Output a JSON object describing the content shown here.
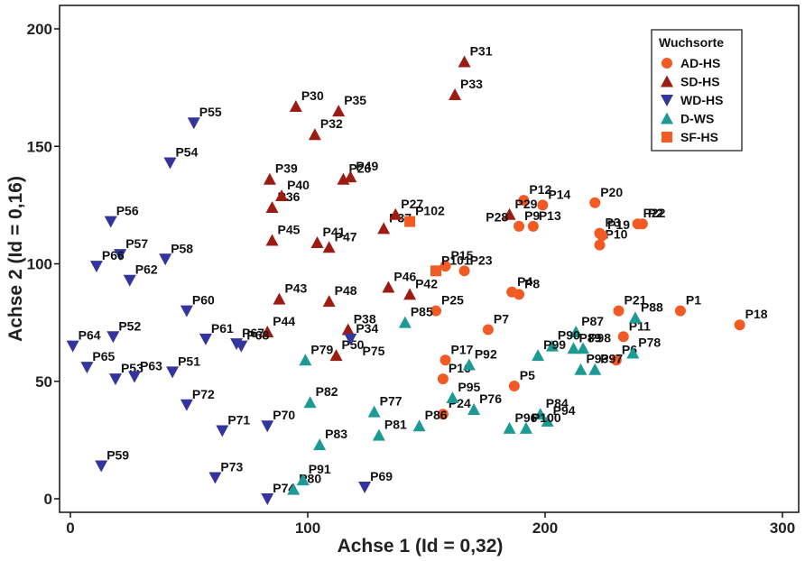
{
  "chart_data": {
    "type": "scatter",
    "xlabel": "Achse 1 (Id = 0,32)",
    "ylabel": "Achse 2 (Id = 0,16)",
    "xlim": [
      0,
      300
    ],
    "ylim": [
      0,
      200
    ],
    "xticks": [
      0,
      100,
      200,
      300
    ],
    "yticks": [
      0,
      50,
      100,
      150,
      200
    ],
    "legend_title": "Wuchsorte",
    "legend_position": "top-right",
    "series": [
      {
        "name": "AD-HS",
        "marker": "circle",
        "color": "#f25a24",
        "points": [
          {
            "label": "P1",
            "x": 257,
            "y": 80
          },
          {
            "label": "P2",
            "x": 241,
            "y": 117
          },
          {
            "label": "P3",
            "x": 223,
            "y": 113
          },
          {
            "label": "P4",
            "x": 186,
            "y": 88
          },
          {
            "label": "P5",
            "x": 187,
            "y": 48
          },
          {
            "label": "P6",
            "x": 230,
            "y": 59
          },
          {
            "label": "P7",
            "x": 176,
            "y": 72
          },
          {
            "label": "P8",
            "x": 189,
            "y": 87
          },
          {
            "label": "P9",
            "x": 189,
            "y": 116
          },
          {
            "label": "P10",
            "x": 223,
            "y": 108
          },
          {
            "label": "P11",
            "x": 233,
            "y": 69
          },
          {
            "label": "P12",
            "x": 191,
            "y": 127
          },
          {
            "label": "P13",
            "x": 195,
            "y": 116
          },
          {
            "label": "P14",
            "x": 199,
            "y": 125
          },
          {
            "label": "P15",
            "x": 158,
            "y": 99
          },
          {
            "label": "P16",
            "x": 157,
            "y": 51
          },
          {
            "label": "P17",
            "x": 158,
            "y": 59
          },
          {
            "label": "P18",
            "x": 282,
            "y": 74
          },
          {
            "label": "P19",
            "x": 224,
            "y": 112
          },
          {
            "label": "P20",
            "x": 221,
            "y": 126
          },
          {
            "label": "P21",
            "x": 231,
            "y": 80
          },
          {
            "label": "P22",
            "x": 239,
            "y": 117
          },
          {
            "label": "P23",
            "x": 166,
            "y": 97
          },
          {
            "label": "P24",
            "x": 157,
            "y": 36
          },
          {
            "label": "P25",
            "x": 154,
            "y": 80
          }
        ]
      },
      {
        "name": "SD-HS",
        "marker": "triangle-up",
        "color": "#9c1c14",
        "points": [
          {
            "label": "P26",
            "x": 115,
            "y": 136
          },
          {
            "label": "P29",
            "x": 185,
            "y": 121
          },
          {
            "label": "P30",
            "x": 95,
            "y": 167
          },
          {
            "label": "P31",
            "x": 166,
            "y": 186
          },
          {
            "label": "P32",
            "x": 103,
            "y": 155
          },
          {
            "label": "P33",
            "x": 162,
            "y": 172
          },
          {
            "label": "P35",
            "x": 113,
            "y": 165
          },
          {
            "label": "P36",
            "x": 85,
            "y": 124
          },
          {
            "label": "P37",
            "x": 132,
            "y": 115
          },
          {
            "label": "P38",
            "x": 117,
            "y": 72
          },
          {
            "label": "P39",
            "x": 84,
            "y": 136
          },
          {
            "label": "P40",
            "x": 89,
            "y": 129
          },
          {
            "label": "P41",
            "x": 104,
            "y": 109
          },
          {
            "label": "P42",
            "x": 143,
            "y": 87
          },
          {
            "label": "P43",
            "x": 88,
            "y": 85
          },
          {
            "label": "P44",
            "x": 83,
            "y": 71
          },
          {
            "label": "P45",
            "x": 85,
            "y": 110
          },
          {
            "label": "P46",
            "x": 134,
            "y": 90
          },
          {
            "label": "P47",
            "x": 109,
            "y": 107
          },
          {
            "label": "P48",
            "x": 109,
            "y": 84
          },
          {
            "label": "P49",
            "x": 118,
            "y": 137
          },
          {
            "label": "P50",
            "x": 112,
            "y": 61
          },
          {
            "label": "P27",
            "x": 137,
            "y": 121
          }
        ]
      },
      {
        "name": "WD-HS",
        "marker": "triangle-down",
        "color": "#34349e",
        "points": [
          {
            "label": "P34",
            "x": 118,
            "y": 68
          },
          {
            "label": "P51",
            "x": 43,
            "y": 54
          },
          {
            "label": "P52",
            "x": 18,
            "y": 69
          },
          {
            "label": "P53",
            "x": 19,
            "y": 51
          },
          {
            "label": "P54",
            "x": 42,
            "y": 143
          },
          {
            "label": "P55",
            "x": 52,
            "y": 160
          },
          {
            "label": "P56",
            "x": 17,
            "y": 118
          },
          {
            "label": "P57",
            "x": 21,
            "y": 104
          },
          {
            "label": "P58",
            "x": 40,
            "y": 102
          },
          {
            "label": "P59",
            "x": 13,
            "y": 14
          },
          {
            "label": "P60",
            "x": 49,
            "y": 80
          },
          {
            "label": "P61",
            "x": 57,
            "y": 68
          },
          {
            "label": "P62",
            "x": 25,
            "y": 93
          },
          {
            "label": "P63",
            "x": 27,
            "y": 52
          },
          {
            "label": "P64",
            "x": 1,
            "y": 65
          },
          {
            "label": "P65",
            "x": 7,
            "y": 56
          },
          {
            "label": "P66",
            "x": 11,
            "y": 99
          },
          {
            "label": "P67",
            "x": 70,
            "y": 66
          },
          {
            "label": "P68",
            "x": 72,
            "y": 65
          },
          {
            "label": "P69",
            "x": 124,
            "y": 5
          },
          {
            "label": "P70",
            "x": 83,
            "y": 31
          },
          {
            "label": "P71",
            "x": 64,
            "y": 29
          },
          {
            "label": "P72",
            "x": 49,
            "y": 40
          },
          {
            "label": "P73",
            "x": 61,
            "y": 9
          },
          {
            "label": "P74",
            "x": 83,
            "y": 0
          }
        ]
      },
      {
        "name": "D-WS",
        "marker": "triangle-up",
        "color": "#1e9a96",
        "points": [
          {
            "label": "P76",
            "x": 170,
            "y": 38
          },
          {
            "label": "P77",
            "x": 128,
            "y": 37
          },
          {
            "label": "P78",
            "x": 237,
            "y": 62
          },
          {
            "label": "P79",
            "x": 99,
            "y": 59
          },
          {
            "label": "P80",
            "x": 94,
            "y": 4
          },
          {
            "label": "P81",
            "x": 130,
            "y": 27
          },
          {
            "label": "P82",
            "x": 101,
            "y": 41
          },
          {
            "label": "P83",
            "x": 105,
            "y": 23
          },
          {
            "label": "P84",
            "x": 198,
            "y": 36
          },
          {
            "label": "P85",
            "x": 141,
            "y": 75
          },
          {
            "label": "P86",
            "x": 147,
            "y": 31
          },
          {
            "label": "P87",
            "x": 213,
            "y": 71
          },
          {
            "label": "P88",
            "x": 238,
            "y": 77
          },
          {
            "label": "P89",
            "x": 212,
            "y": 64
          },
          {
            "label": "P90",
            "x": 203,
            "y": 65
          },
          {
            "label": "P91",
            "x": 98,
            "y": 8
          },
          {
            "label": "P92",
            "x": 168,
            "y": 57
          },
          {
            "label": "P93",
            "x": 215,
            "y": 55
          },
          {
            "label": "P94",
            "x": 201,
            "y": 33
          },
          {
            "label": "P95",
            "x": 161,
            "y": 43
          },
          {
            "label": "P96",
            "x": 185,
            "y": 30
          },
          {
            "label": "P97",
            "x": 221,
            "y": 55
          },
          {
            "label": "P98",
            "x": 216,
            "y": 64
          },
          {
            "label": "P99",
            "x": 197,
            "y": 61
          },
          {
            "label": "P100",
            "x": 192,
            "y": 30
          }
        ]
      },
      {
        "name": "SF-HS",
        "marker": "square",
        "color": "#f25a24",
        "points": [
          {
            "label": "P101",
            "x": 154,
            "y": 97
          },
          {
            "label": "P102",
            "x": 143,
            "y": 118
          }
        ]
      }
    ],
    "extra_labels": [
      "P28",
      "P75"
    ]
  }
}
